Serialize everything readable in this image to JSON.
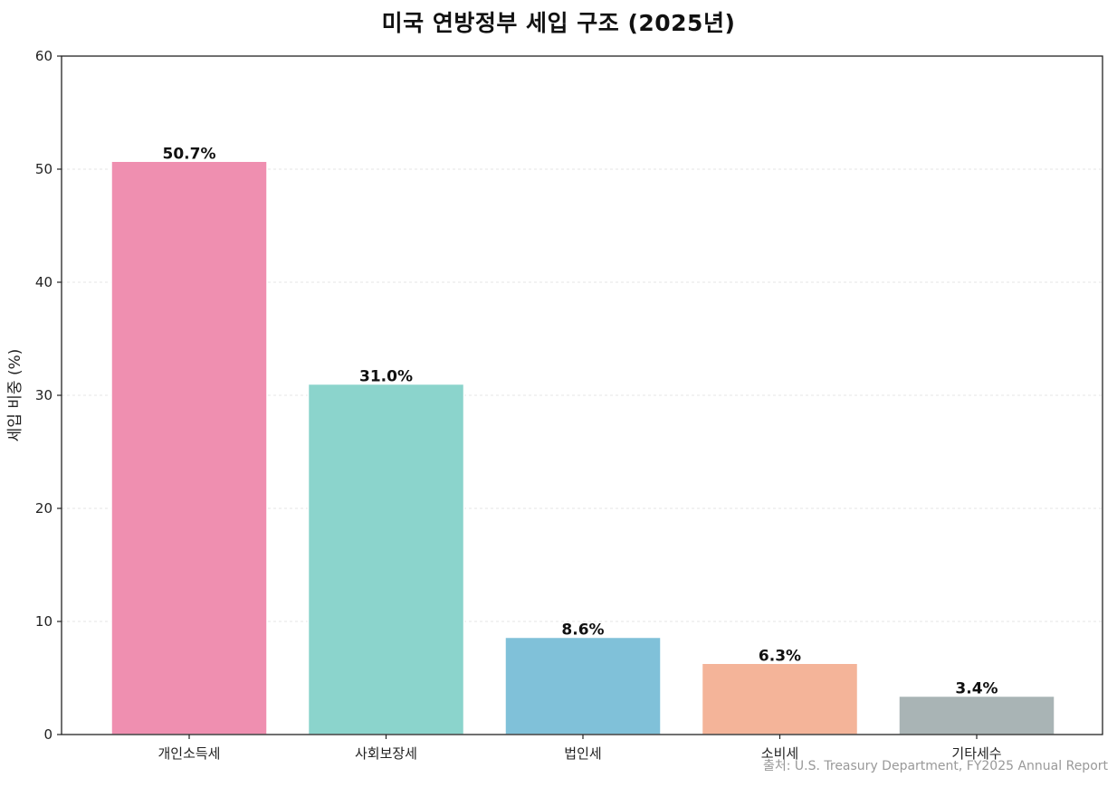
{
  "chart_data": {
    "type": "bar",
    "title": "미국 연방정부 세입 구조 (2025년)",
    "xlabel": "",
    "ylabel": "세입 비중 (%)",
    "ylim": [
      0,
      60
    ],
    "yticks": [
      0,
      10,
      20,
      30,
      40,
      50,
      60
    ],
    "categories": [
      "개인소득세",
      "사회보장세",
      "법인세",
      "소비세",
      "기타세수"
    ],
    "values": [
      50.7,
      31.0,
      8.6,
      6.3,
      3.4
    ],
    "data_labels": [
      "50.7%",
      "31.0%",
      "8.6%",
      "6.3%",
      "3.4%"
    ],
    "colors": [
      "#ef8fb0",
      "#8bd4cc",
      "#80c1d9",
      "#f4b499",
      "#a9b4b5"
    ],
    "grid": true,
    "legend": "none"
  },
  "source_note": "출처: U.S. Treasury Department, FY2025 Annual Report"
}
